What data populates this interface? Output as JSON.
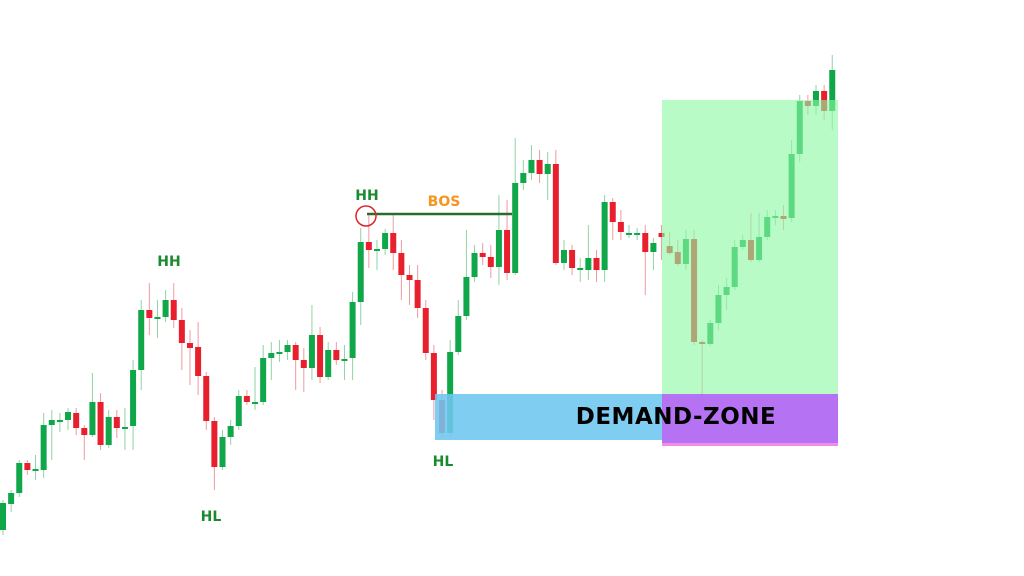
{
  "chart_data": {
    "type": "candlestick",
    "title": "",
    "xlabel": "",
    "ylabel": "",
    "grid": false,
    "colors": {
      "up": "#10a64a",
      "down": "#e8202e",
      "label_green": "#1b8a2f",
      "bos_orange": "#f7931e",
      "bos_line": "#2d6b2d",
      "swing_circle": "#d9262b",
      "demand_zone": "#7dcdf0",
      "demand_zone_overlap": "#b46cf5",
      "rally_zone": "#b3f9c6"
    },
    "candles_ohlc": [
      [
        46,
        76,
        41,
        73
      ],
      [
        72,
        86,
        64,
        83
      ],
      [
        83,
        116,
        79,
        113
      ],
      [
        113,
        116,
        101,
        106
      ],
      [
        107,
        121,
        96,
        107
      ],
      [
        106,
        163,
        98,
        151
      ],
      [
        151,
        166,
        116,
        156
      ],
      [
        156,
        163,
        144,
        156
      ],
      [
        156,
        168,
        146,
        164
      ],
      [
        163,
        168,
        141,
        148
      ],
      [
        148,
        151,
        116,
        141
      ],
      [
        141,
        203,
        139,
        174
      ],
      [
        174,
        183,
        126,
        131
      ],
      [
        131,
        166,
        128,
        159
      ],
      [
        159,
        166,
        138,
        148
      ],
      [
        147,
        168,
        126,
        149
      ],
      [
        150,
        216,
        126,
        206
      ],
      [
        206,
        276,
        186,
        266
      ],
      [
        266,
        293,
        241,
        258
      ],
      [
        259,
        276,
        238,
        259
      ],
      [
        259,
        286,
        254,
        276
      ],
      [
        276,
        293,
        248,
        256
      ],
      [
        256,
        268,
        206,
        233
      ],
      [
        233,
        246,
        191,
        228
      ],
      [
        229,
        254,
        181,
        200
      ],
      [
        200,
        204,
        146,
        155
      ],
      [
        155,
        159,
        86,
        109
      ],
      [
        109,
        146,
        106,
        139
      ],
      [
        139,
        156,
        131,
        150
      ],
      [
        150,
        186,
        146,
        180
      ],
      [
        180,
        186,
        171,
        174
      ],
      [
        174,
        209,
        166,
        174
      ],
      [
        174,
        231,
        171,
        218
      ],
      [
        218,
        234,
        196,
        223
      ],
      [
        224,
        236,
        214,
        224
      ],
      [
        224,
        236,
        216,
        231
      ],
      [
        231,
        234,
        186,
        216
      ],
      [
        216,
        228,
        184,
        208
      ],
      [
        208,
        271,
        196,
        241
      ],
      [
        241,
        249,
        193,
        199
      ],
      [
        199,
        234,
        196,
        226
      ],
      [
        226,
        234,
        211,
        216
      ],
      [
        217,
        231,
        196,
        217
      ],
      [
        218,
        284,
        196,
        274
      ],
      [
        274,
        348,
        251,
        334
      ],
      [
        334,
        361,
        308,
        326
      ],
      [
        327,
        336,
        306,
        327
      ],
      [
        327,
        347,
        321,
        343
      ],
      [
        343,
        361,
        306,
        323
      ],
      [
        323,
        336,
        276,
        301
      ],
      [
        301,
        311,
        271,
        296
      ],
      [
        296,
        311,
        258,
        268
      ],
      [
        268,
        276,
        216,
        223
      ],
      [
        223,
        231,
        156,
        176
      ],
      [
        176,
        186,
        138,
        143
      ],
      [
        143,
        236,
        139,
        224
      ],
      [
        224,
        276,
        221,
        260
      ],
      [
        260,
        346,
        256,
        299
      ],
      [
        299,
        331,
        294,
        323
      ],
      [
        323,
        333,
        311,
        319
      ],
      [
        319,
        331,
        298,
        309
      ],
      [
        309,
        381,
        291,
        346
      ],
      [
        346,
        376,
        296,
        303
      ],
      [
        303,
        438,
        301,
        393
      ],
      [
        393,
        416,
        386,
        403
      ],
      [
        403,
        431,
        396,
        416
      ],
      [
        416,
        426,
        393,
        402
      ],
      [
        402,
        424,
        376,
        412
      ],
      [
        412,
        426,
        311,
        313
      ],
      [
        313,
        336,
        306,
        326
      ],
      [
        326,
        331,
        301,
        308
      ],
      [
        308,
        318,
        294,
        308
      ],
      [
        306,
        351,
        296,
        318
      ],
      [
        318,
        326,
        294,
        306
      ],
      [
        306,
        381,
        294,
        374
      ],
      [
        374,
        378,
        336,
        354
      ],
      [
        354,
        366,
        336,
        344
      ],
      [
        343,
        351,
        338,
        343
      ],
      [
        343,
        348,
        336,
        343
      ],
      [
        343,
        351,
        281,
        324
      ],
      [
        324,
        338,
        306,
        333
      ],
      [
        343,
        351,
        316,
        339
      ],
      [
        330,
        344,
        321,
        323
      ],
      [
        324,
        336,
        310,
        312
      ],
      [
        312,
        346,
        306,
        337
      ],
      [
        337,
        346,
        231,
        234
      ],
      [
        234,
        236,
        166,
        232
      ],
      [
        232,
        256,
        230,
        253
      ],
      [
        253,
        291,
        246,
        281
      ],
      [
        281,
        298,
        266,
        289
      ],
      [
        289,
        336,
        286,
        329
      ],
      [
        329,
        341,
        326,
        336
      ],
      [
        336,
        363,
        314,
        316
      ],
      [
        316,
        363,
        314,
        339
      ],
      [
        339,
        366,
        336,
        359
      ],
      [
        360,
        366,
        351,
        360
      ],
      [
        360,
        371,
        346,
        357
      ],
      [
        358,
        436,
        354,
        422
      ],
      [
        422,
        481,
        414,
        475
      ],
      [
        475,
        481,
        461,
        470
      ],
      [
        470,
        491,
        461,
        485
      ],
      [
        485,
        491,
        456,
        465
      ],
      [
        465,
        521,
        446,
        506
      ]
    ],
    "annotations": {
      "hh_1": "HH",
      "hl_1": "HL",
      "hh_2": "HH",
      "hl_2": "HL",
      "bos": "BOS",
      "demand_zone": "DEMAND-ZONE"
    }
  }
}
